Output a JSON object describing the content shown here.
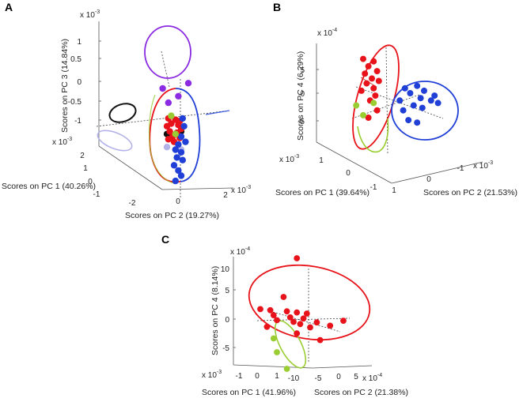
{
  "colors": {
    "red": "#e8131a",
    "blue": "#1f3fd6",
    "purple": "#8a2be2",
    "lavender": "#b3b3ea",
    "black": "#111111",
    "lightgreen": "#9acd32"
  },
  "chart_data": [
    {
      "type": "scatter",
      "panel": "A",
      "projection": "3d",
      "title": "",
      "exponent_labels": [
        "x 10",
        "x 10",
        "x 10"
      ],
      "exponents": [
        "-3",
        "-3",
        "-3"
      ],
      "xlabel": "Scores on PC 1 (40.26%)",
      "ylabel": "Scores on PC 2 (19.27%)",
      "zlabel": "Scores on PC 3 (14.84%)",
      "z_ticks": [
        "1",
        "0.5",
        "0",
        "-0.5",
        "-1"
      ],
      "y_ticks": [
        "-2",
        "0",
        "2"
      ],
      "x_ticks": [
        "2",
        "1",
        "0",
        "-1"
      ],
      "series": [
        {
          "name": "purple group",
          "color": "purple",
          "points": [
            [
              1,
              1.05
            ],
            [
              -0.8,
              0.85
            ],
            [
              0.3,
              0.55
            ],
            [
              -0.4,
              0.3
            ]
          ]
        },
        {
          "name": "black group",
          "color": "black",
          "points": [
            [
              -0.5,
              -0.9
            ],
            [
              0.5,
              -0.8
            ]
          ]
        },
        {
          "name": "lavender group",
          "color": "lavender",
          "points": [
            [
              -0.5,
              -1.4
            ],
            [
              0.5,
              -1.5
            ]
          ]
        },
        {
          "name": "red group",
          "color": "red",
          "points": [
            [
              -0.4,
              -0.3
            ],
            [
              0.1,
              -0.35
            ],
            [
              0.4,
              -0.4
            ],
            [
              -0.2,
              -0.5
            ],
            [
              0.3,
              -0.55
            ],
            [
              -0.5,
              -0.6
            ],
            [
              0.5,
              -0.7
            ],
            [
              -0.3,
              -0.8
            ],
            [
              0.2,
              -0.85
            ],
            [
              -0.1,
              -1.0
            ],
            [
              0.4,
              -1.05
            ],
            [
              -0.4,
              -1.1
            ],
            [
              0.0,
              -1.2
            ]
          ]
        },
        {
          "name": "blue group",
          "color": "blue",
          "points": [
            [
              0.6,
              -0.3
            ],
            [
              0.7,
              -0.6
            ],
            [
              0.5,
              -1.0
            ],
            [
              0.8,
              -1.2
            ],
            [
              0.3,
              -1.3
            ],
            [
              0.1,
              -1.5
            ],
            [
              0.5,
              -1.6
            ],
            [
              0.2,
              -1.8
            ],
            [
              0.6,
              -1.9
            ],
            [
              0.0,
              -2.1
            ],
            [
              0.3,
              -2.3
            ],
            [
              0.5,
              -2.5
            ],
            [
              0.1,
              -2.7
            ]
          ]
        },
        {
          "name": "green group",
          "color": "lightgreen",
          "points": [
            [
              -0.2,
              -0.2
            ],
            [
              0.1,
              -0.9
            ]
          ]
        }
      ]
    },
    {
      "type": "scatter",
      "panel": "B",
      "projection": "3d",
      "title": "",
      "exponent_labels": [
        "x 10",
        "x 10",
        "x 10"
      ],
      "exponents": [
        "-4",
        "-3",
        "-3"
      ],
      "xlabel": "Scores on PC 1 (39.64%)",
      "ylabel": "Scores on PC 2 (21.53%)",
      "zlabel": "Scores on PC 4 (6.29%)",
      "z_ticks": [
        "5",
        "0",
        "-5"
      ],
      "x_ticks": [
        "1",
        "0",
        "-1"
      ],
      "y_ticks": [
        "1",
        "0",
        "-1"
      ],
      "series": [
        {
          "name": "red group",
          "color": "red",
          "points": [
            [
              -0.5,
              7
            ],
            [
              0.1,
              6.5
            ],
            [
              -0.2,
              5.5
            ],
            [
              0.3,
              4.5
            ],
            [
              -0.4,
              4
            ],
            [
              0,
              3
            ],
            [
              0.4,
              2.5
            ],
            [
              -0.3,
              2
            ],
            [
              0.1,
              1
            ],
            [
              -0.6,
              0.5
            ],
            [
              0.2,
              -0.5
            ],
            [
              -0.1,
              -1.5
            ],
            [
              0.3,
              -3.5
            ],
            [
              -0.2,
              -5
            ]
          ]
        },
        {
          "name": "green group",
          "color": "lightgreen",
          "points": [
            [
              -0.9,
              -2.5
            ],
            [
              -0.5,
              -4.5
            ],
            [
              0.1,
              -2
            ]
          ]
        },
        {
          "name": "blue group",
          "color": "blue",
          "points": [
            [
              1.9,
              1
            ],
            [
              2.6,
              1.5
            ],
            [
              3.0,
              0.5
            ],
            [
              2.2,
              0
            ],
            [
              3.6,
              -0.5
            ],
            [
              2.8,
              -1
            ],
            [
              1.6,
              -1.5
            ],
            [
              3.4,
              -1.5
            ],
            [
              2.4,
              -2.5
            ],
            [
              1.8,
              -3.5
            ],
            [
              2.9,
              -3
            ],
            [
              3.8,
              -2
            ],
            [
              2.1,
              -5.5
            ],
            [
              2.6,
              -6
            ]
          ]
        }
      ]
    },
    {
      "type": "scatter",
      "panel": "C",
      "projection": "3d",
      "title": "",
      "exponent_labels": [
        "x 10",
        "x 10",
        "x 10"
      ],
      "exponents": [
        "-4",
        "-3",
        "-4"
      ],
      "xlabel": "Scores on PC 1 (41.96%)",
      "ylabel": "Scores on PC 2 (21.38%)",
      "zlabel": "Scores on PC 4 (8.14%)",
      "z_ticks": [
        "10",
        "5",
        "0",
        "-5"
      ],
      "x_ticks": [
        "-1",
        "0",
        "1"
      ],
      "y_ticks": [
        "-10",
        "-5",
        "0",
        "5"
      ],
      "series": [
        {
          "name": "red group",
          "color": "red",
          "points": [
            [
              -4,
              11
            ],
            [
              -8,
              4
            ],
            [
              -15,
              1.8
            ],
            [
              -12,
              1.6
            ],
            [
              -7,
              1.4
            ],
            [
              -4,
              1.2
            ],
            [
              -1,
              1.0
            ],
            [
              -11,
              0.7
            ],
            [
              -6,
              0.3
            ],
            [
              -2,
              0.1
            ],
            [
              -10,
              -0.2
            ],
            [
              -5,
              -0.5
            ],
            [
              -3,
              -0.9
            ],
            [
              2,
              -0.6
            ],
            [
              6,
              -1.2
            ],
            [
              10,
              -0.3
            ],
            [
              0,
              -1.5
            ],
            [
              -13,
              -1.4
            ],
            [
              -4,
              -2.6
            ],
            [
              3,
              -3.8
            ]
          ]
        },
        {
          "name": "green group",
          "color": "lightgreen",
          "points": [
            [
              -11,
              -3.5
            ],
            [
              -10,
              -6
            ],
            [
              -7,
              -9
            ]
          ]
        }
      ]
    }
  ]
}
